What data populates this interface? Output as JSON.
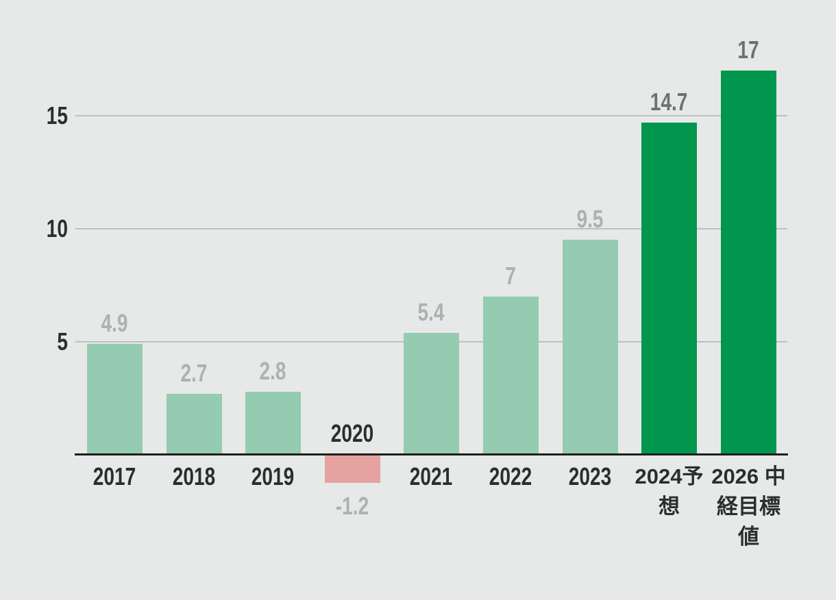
{
  "chart_data": {
    "type": "bar",
    "title": "",
    "categories": [
      "2017",
      "2018",
      "2019",
      "2020",
      "2021",
      "2022",
      "2023",
      "2024予想",
      "2026 中経目標値"
    ],
    "values": [
      4.9,
      2.7,
      2.8,
      -1.2,
      5.4,
      7,
      9.5,
      14.7,
      17
    ],
    "value_labels": [
      "4.9",
      "2.7",
      "2.8",
      "-1.2",
      "5.4",
      "7",
      "9.5",
      "14.7",
      "17"
    ],
    "bar_styles": [
      "light",
      "light",
      "light",
      "negative",
      "light",
      "light",
      "light",
      "dark",
      "dark"
    ],
    "y_tick_values": [
      5,
      10,
      15
    ],
    "y_tick_labels": [
      "5",
      "10",
      "15"
    ],
    "ylim": [
      -1.2,
      17
    ],
    "grid": true,
    "legend_position": "none",
    "colors": {
      "background": "#e6e9e8",
      "bar_light": "#95cbb0",
      "bar_dark": "#00964d",
      "bar_negative": "#e6a1a1",
      "gridline": "#bdc0c0",
      "axis_line": "#1d1f1f",
      "category_label": "#2b2e2e",
      "tick_label": "#2b2e2e",
      "value_label_light": "#aeb1b1",
      "value_label_dark": "#6e7171"
    }
  }
}
